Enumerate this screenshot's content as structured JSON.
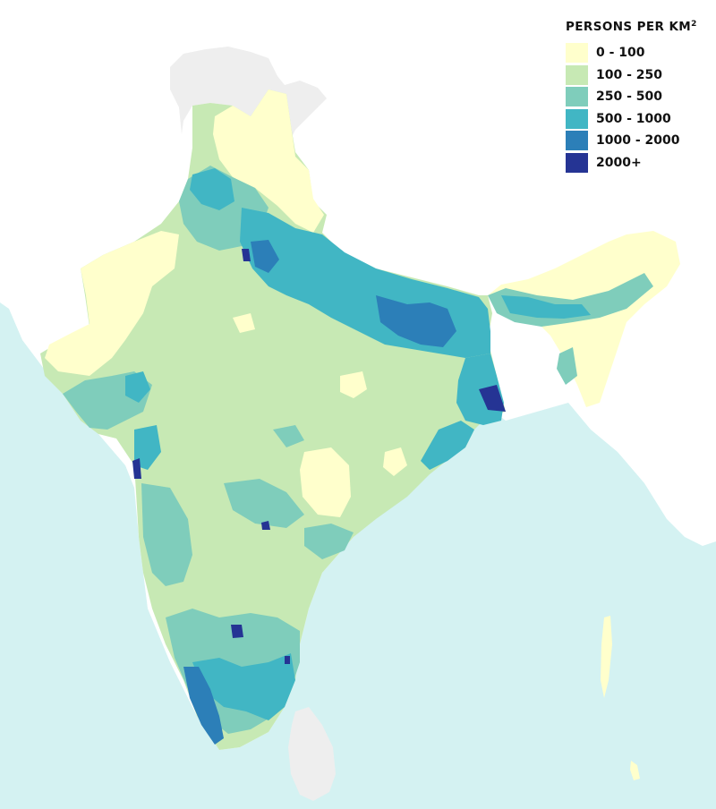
{
  "legend": {
    "title": "PERSONS PER KM",
    "title_sup": "2",
    "classes": [
      {
        "label": "0 - 100",
        "color": "#ffffcc"
      },
      {
        "label": "100 - 250",
        "color": "#c7e9b4"
      },
      {
        "label": "250 - 500",
        "color": "#7fcdbb"
      },
      {
        "label": "500 - 1000",
        "color": "#41b6c4"
      },
      {
        "label": "1000 - 2000",
        "color": "#2c7fb8"
      },
      {
        "label": "2000+",
        "color": "#253494"
      }
    ]
  },
  "colors": {
    "sea": "#d4f2f2",
    "land_outside": "#ffffff",
    "no_data": "#eeeeee"
  }
}
